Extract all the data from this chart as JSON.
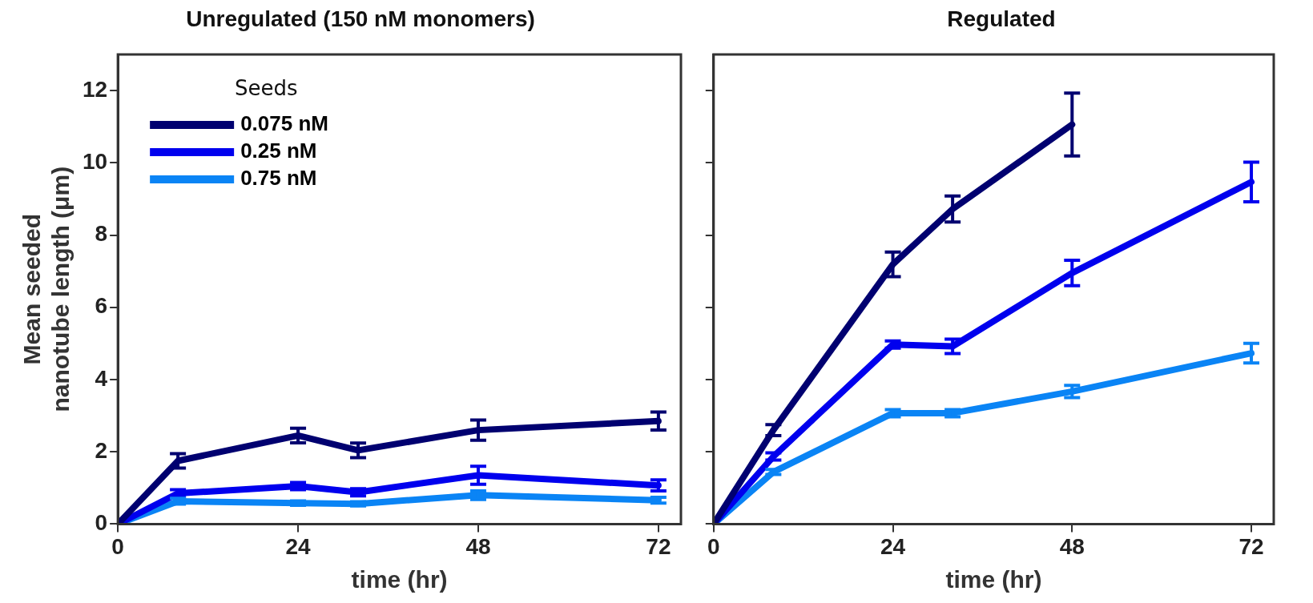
{
  "chart_data": [
    {
      "type": "line",
      "title": "Unregulated (150 nM monomers)",
      "xlabel": "time (hr)",
      "ylabel": "Mean seeded nanotube length (μm)",
      "legend_title": "Seeds",
      "legend": "top left",
      "grid": false,
      "line_style": "solid",
      "xlim": [
        0,
        75
      ],
      "xticks": [
        0,
        24,
        48,
        72
      ],
      "ylim": [
        0,
        13
      ],
      "yticks": [
        0,
        2,
        4,
        6,
        8,
        10,
        12
      ],
      "x": [
        0,
        8,
        24,
        32,
        48,
        72
      ],
      "series": [
        {
          "name": "0.075 nM",
          "color": "#000070",
          "values": [
            0,
            1.75,
            2.45,
            2.04,
            2.6,
            2.85
          ],
          "errors": [
            null,
            0.2,
            0.2,
            0.2,
            0.28,
            0.25
          ]
        },
        {
          "name": "0.25 nM",
          "color": "#0000ee",
          "values": [
            0,
            0.85,
            1.05,
            0.88,
            1.35,
            1.07
          ],
          "errors": [
            null,
            0.1,
            0.1,
            0.1,
            0.25,
            0.15
          ]
        },
        {
          "name": "0.75 nM",
          "color": "#0a84f5",
          "values": [
            0,
            0.63,
            0.58,
            0.56,
            0.8,
            0.66
          ],
          "errors": [
            null,
            0.08,
            0.06,
            0.06,
            0.12,
            0.08
          ]
        }
      ]
    },
    {
      "type": "line",
      "title": "Regulated",
      "xlabel": "time (hr)",
      "grid": false,
      "line_style": "solid",
      "tick_labels": "x",
      "xlim": [
        0,
        75
      ],
      "xticks": [
        0,
        24,
        48,
        72
      ],
      "ylim": [
        0,
        13
      ],
      "yticks": [
        0,
        2,
        4,
        6,
        8,
        10,
        12
      ],
      "x": [
        0,
        8,
        24,
        32,
        48,
        72
      ],
      "series": [
        {
          "color": "#000070",
          "values": [
            0,
            2.6,
            7.19,
            8.72,
            11.06,
            null
          ],
          "errors": [
            null,
            0.15,
            0.34,
            0.36,
            0.87,
            null
          ]
        },
        {
          "color": "#0000ee",
          "values": [
            0,
            1.87,
            4.97,
            4.92,
            6.95,
            9.47
          ],
          "errors": [
            null,
            0.1,
            0.1,
            0.2,
            0.35,
            0.55
          ]
        },
        {
          "color": "#0a84f5",
          "values": [
            0,
            1.44,
            3.07,
            3.07,
            3.67,
            4.73
          ],
          "errors": [
            null,
            0.07,
            0.1,
            0.1,
            0.17,
            0.27
          ]
        }
      ]
    }
  ]
}
